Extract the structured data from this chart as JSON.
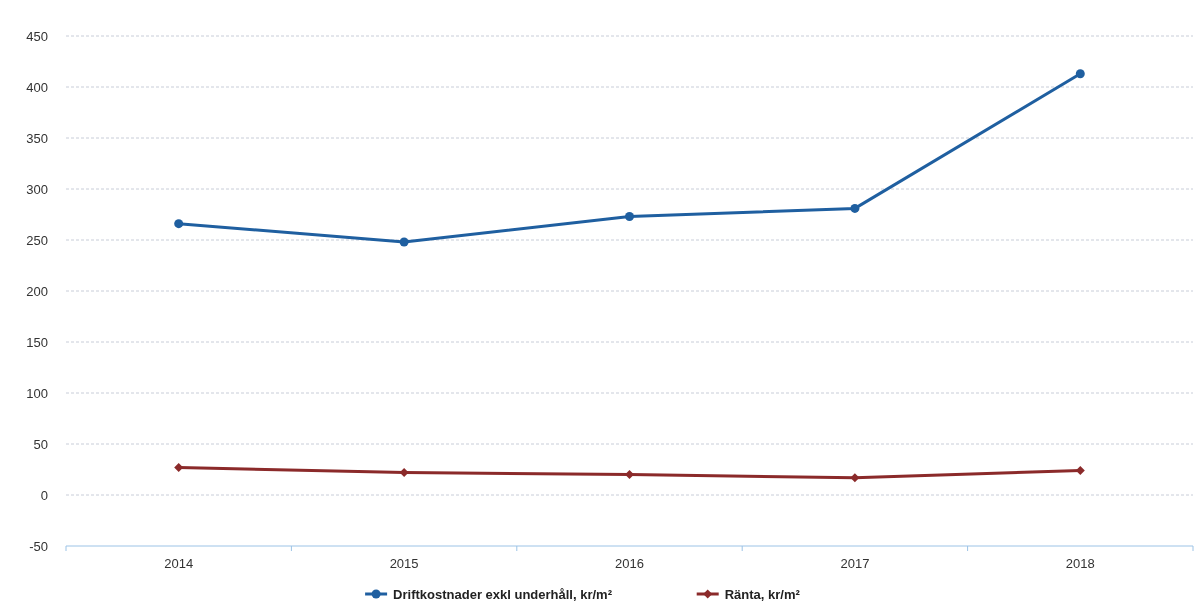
{
  "chart_data": {
    "type": "line",
    "categories": [
      "2014",
      "2015",
      "2016",
      "2017",
      "2018"
    ],
    "series": [
      {
        "name": "Driftkostnader exkl underhåll, kr/m²",
        "color": "#1f5fa0",
        "values": [
          266,
          248,
          273,
          281,
          413
        ],
        "marker": "circle"
      },
      {
        "name": "Ränta, kr/m²",
        "color": "#8b2a2a",
        "values": [
          27,
          22,
          20,
          17,
          24
        ],
        "marker": "diamond"
      }
    ],
    "ylim": [
      -50,
      450
    ],
    "yticks": [
      -50,
      0,
      50,
      100,
      150,
      200,
      250,
      300,
      350,
      400,
      450
    ],
    "grid": "y",
    "legend": "bottom",
    "line_style": "solid"
  }
}
